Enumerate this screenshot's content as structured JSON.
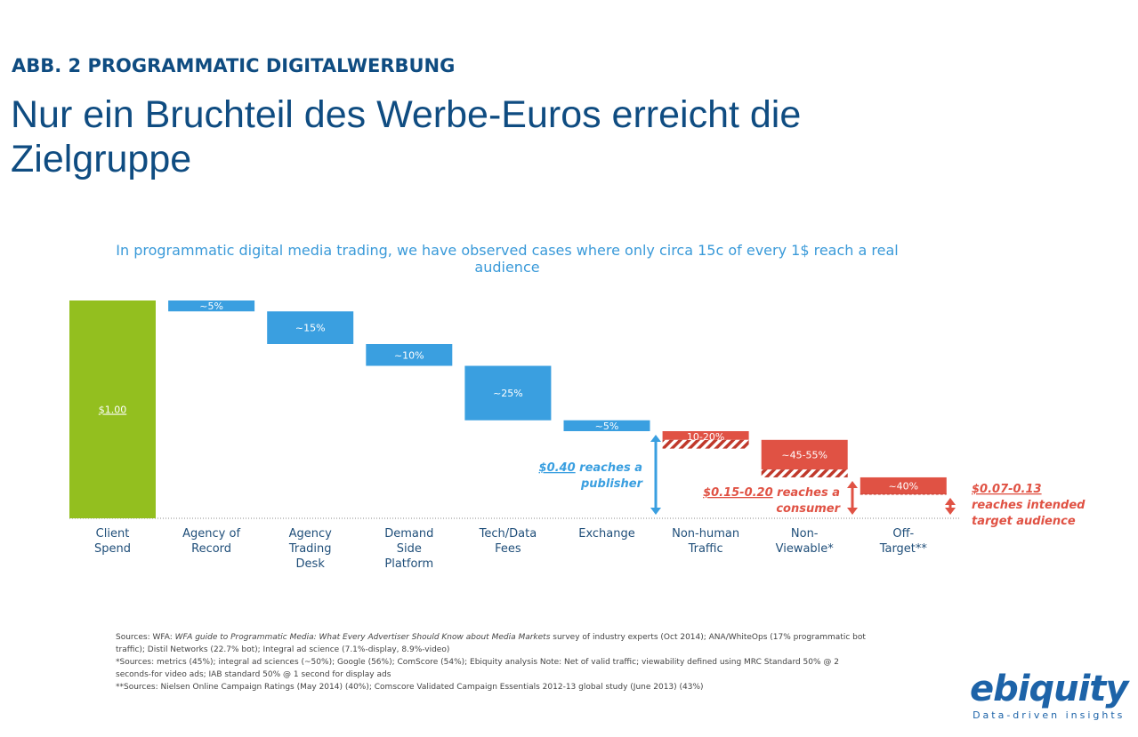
{
  "header": {
    "kicker": "ABB. 2 PROGRAMMATIC DIGITALWERBUNG",
    "title": "Nur ein Bruchteil des Werbe-Euros erreicht die Zielgruppe"
  },
  "chart_data": {
    "type": "waterfall",
    "title": "In programmatic digital media trading, we have observed cases where only circa 15c of every 1$ reach a real audience",
    "ylim": [
      0,
      1
    ],
    "grid": false,
    "colors": {
      "client": "#93bf1f",
      "cost": "#3a9fe0",
      "loss": "#e05244"
    },
    "bars": [
      {
        "category": "Client Spend",
        "label": "$1.00",
        "from": 0,
        "to": 1.0,
        "kind": "client"
      },
      {
        "category": "Agency of Record",
        "label": "~5%",
        "from": 1.0,
        "to": 0.95,
        "kind": "cost"
      },
      {
        "category": "Agency Trading Desk",
        "label": "~15%",
        "from": 0.95,
        "to": 0.8,
        "kind": "cost"
      },
      {
        "category": "Demand Side Platform",
        "label": "~10%",
        "from": 0.8,
        "to": 0.7,
        "kind": "cost"
      },
      {
        "category": "Tech/Data Fees",
        "label": "~25%",
        "from": 0.7,
        "to": 0.45,
        "kind": "cost"
      },
      {
        "category": "Exchange",
        "label": "~5%",
        "from": 0.45,
        "to": 0.4,
        "kind": "cost"
      },
      {
        "category": "Non-human Traffic",
        "label": "10-20%",
        "from": 0.4,
        "to": 0.36,
        "range_to": 0.32,
        "kind": "loss"
      },
      {
        "category": "Non-Viewable*",
        "label": "~45-55%",
        "from": 0.36,
        "to": 0.224,
        "range_to": 0.188,
        "kind": "loss"
      },
      {
        "category": "Off-Target**",
        "label": "~40%",
        "from": 0.188,
        "to": 0.11,
        "kind": "loss"
      }
    ],
    "annotations": [
      {
        "amount": "$0.40",
        "text": "reaches a publisher",
        "value": 0.4,
        "color": "#3a9fe0"
      },
      {
        "amount": "$0.15-0.20",
        "text": "reaches a consumer",
        "value": 0.188,
        "color": "#e05244"
      },
      {
        "amount": "$0.07-0.13",
        "text": "reaches intended target audience",
        "value": 0.11,
        "color": "#e05244"
      }
    ]
  },
  "sources": [
    "Sources: WFA: ",
    "WFA guide to Programmatic Media: What Every Advertiser Should Know about Media Markets",
    " survey of industry experts (Oct 2014); ANA/WhiteOps (17% programmatic bot traffic); Distil Networks (22.7% bot); Integral ad science (7.1%-display, 8.9%-video)",
    "*Sources: metrics (45%); integral ad sciences (~50%); Google (56%); ComScore (54%); Ebiquity analysis Note: Net of valid traffic; viewability defined using MRC Standard 50% @ 2 seconds-for video ads; IAB standard 50% @ 1 second for display ads",
    "**Sources: Nielsen Online Campaign Ratings (May 2014) (40%); Comscore Validated Campaign Essentials 2012-13 global study (June 2013) (43%)"
  ],
  "logo": {
    "wordmark": "ebiquity",
    "tagline": "Data-driven insights"
  }
}
